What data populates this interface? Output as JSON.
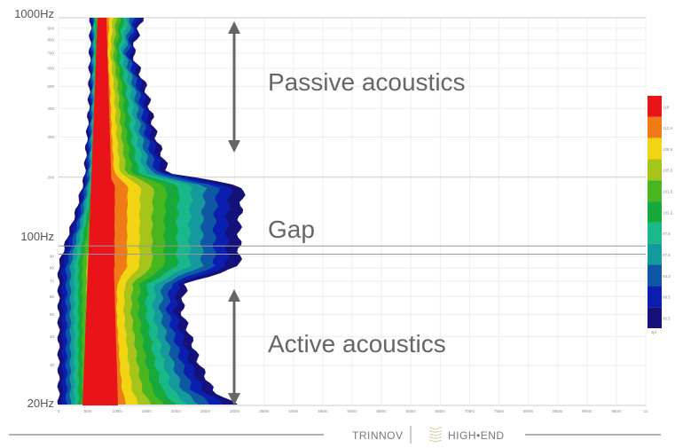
{
  "chart_data": {
    "type": "heatmap",
    "title": "",
    "xlabel": "",
    "ylabel": "",
    "x_tick_labels": [
      "0",
      "50m",
      "100m",
      "150m",
      "200m",
      "250m",
      "300m",
      "350m",
      "400m",
      "450m",
      "500m",
      "550m",
      "600m",
      "650m",
      "700m",
      "750m",
      "800m",
      "850m",
      "900m",
      "950m",
      "1s"
    ],
    "xlim": [
      0,
      1
    ],
    "y_scale": "log",
    "ylim": [
      20,
      1000
    ],
    "y_major_labels": [
      {
        "value": 1000,
        "label": "1000Hz"
      },
      {
        "value": 100,
        "label": "100Hz"
      },
      {
        "value": 20,
        "label": "20Hz"
      }
    ],
    "y_minor_ticks": [
      {
        "value": 900,
        "label": "900"
      },
      {
        "value": 800,
        "label": "800"
      },
      {
        "value": 700,
        "label": "700"
      },
      {
        "value": 600,
        "label": "600"
      },
      {
        "value": 500,
        "label": "500"
      },
      {
        "value": 400,
        "label": "400"
      },
      {
        "value": 300,
        "label": "300"
      },
      {
        "value": 200,
        "label": "200"
      },
      {
        "value": 90,
        "label": "90"
      },
      {
        "value": 80,
        "label": "80"
      },
      {
        "value": 70,
        "label": "70"
      },
      {
        "value": 60,
        "label": "60"
      },
      {
        "value": 50,
        "label": "50"
      },
      {
        "value": 40,
        "label": "40"
      },
      {
        "value": 30,
        "label": "30"
      }
    ],
    "grid": true,
    "colorbar": {
      "placement": "right",
      "unit": "spl",
      "labels": [
        "118",
        "112.5",
        "108.5",
        "105.5",
        "101.5",
        "101.2",
        "97.6",
        "97.6",
        "93.3",
        "89.5",
        "85.5"
      ],
      "colors": [
        "#e8141a",
        "#f07a17",
        "#f2d413",
        "#a7c41a",
        "#49b51f",
        "#17a93a",
        "#18b88a",
        "#149a9c",
        "#0d57a5",
        "#0a1fb0",
        "#14117a"
      ]
    },
    "annotations": [
      {
        "text": "Passive acoustics",
        "freq_range": [
          200,
          1000
        ]
      },
      {
        "text": "Gap",
        "freq_range": [
          85,
          100
        ]
      },
      {
        "text": "Active acoustics",
        "freq_range": [
          20,
          75
        ]
      }
    ],
    "reference_lines_hz": [
      100,
      92
    ]
  },
  "footer": {
    "brand_left": "TRINNOV",
    "brand_right": "HIGH•END"
  }
}
